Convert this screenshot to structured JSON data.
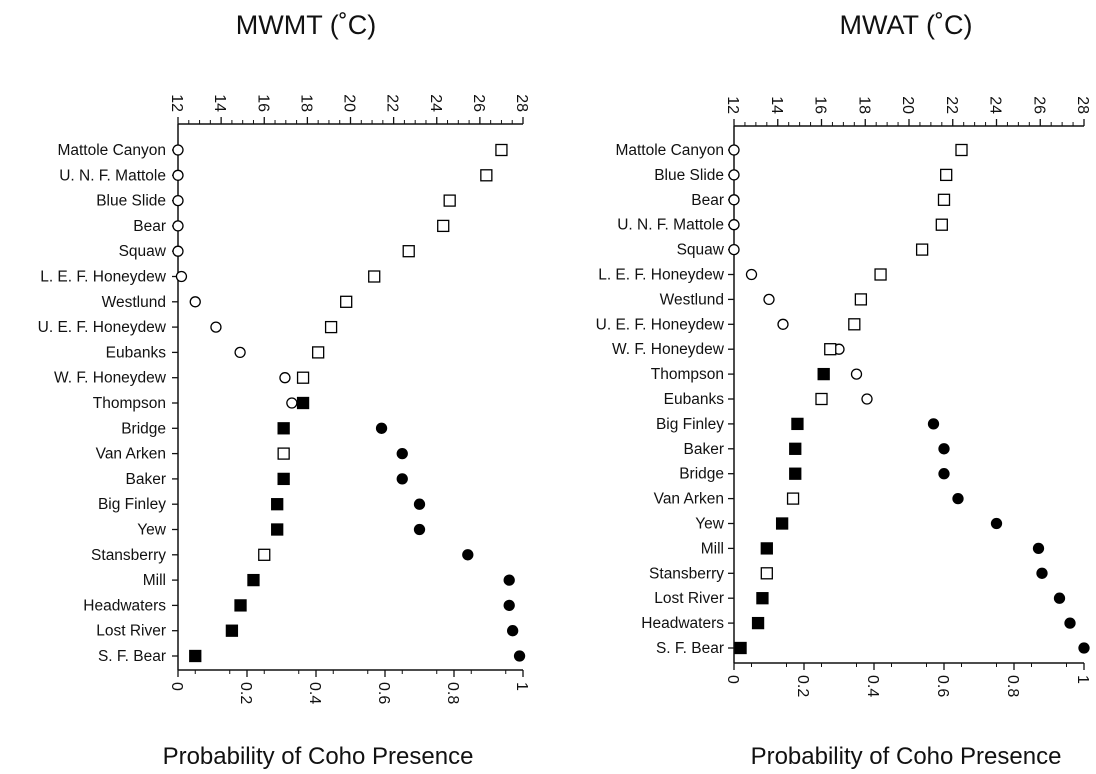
{
  "chart_data": [
    {
      "type": "scatter",
      "title": "MWMT (˚C)",
      "xlabel": "Probability of Coho Presence",
      "x_ticks": [
        "0",
        "0.2",
        "0.4",
        "0.6",
        "0.8",
        "1"
      ],
      "xlim": [
        0,
        1
      ],
      "top_axis_ticks": [
        "12",
        "14",
        "16",
        "18",
        "20",
        "22",
        "24",
        "26",
        "28"
      ],
      "top_axis_range": [
        12,
        28
      ],
      "grid": false,
      "legend": "none",
      "sites": [
        {
          "name": "Mattole Canyon",
          "prob": 0.0,
          "prob_filled": false,
          "temp": 27.0,
          "temp_filled": false
        },
        {
          "name": "U. N. F. Mattole",
          "prob": 0.0,
          "prob_filled": false,
          "temp": 26.3,
          "temp_filled": false
        },
        {
          "name": "Blue Slide",
          "prob": 0.0,
          "prob_filled": false,
          "temp": 24.6,
          "temp_filled": false
        },
        {
          "name": "Bear",
          "prob": 0.0,
          "prob_filled": false,
          "temp": 24.3,
          "temp_filled": false
        },
        {
          "name": "Squaw",
          "prob": 0.0,
          "prob_filled": false,
          "temp": 22.7,
          "temp_filled": false
        },
        {
          "name": "L. E. F. Honeydew",
          "prob": 0.01,
          "prob_filled": false,
          "temp": 21.1,
          "temp_filled": false
        },
        {
          "name": "Westlund",
          "prob": 0.05,
          "prob_filled": false,
          "temp": 19.8,
          "temp_filled": false
        },
        {
          "name": "U. E. F. Honeydew",
          "prob": 0.11,
          "prob_filled": false,
          "temp": 19.1,
          "temp_filled": false
        },
        {
          "name": "Eubanks",
          "prob": 0.18,
          "prob_filled": false,
          "temp": 18.5,
          "temp_filled": false
        },
        {
          "name": "W. F. Honeydew",
          "prob": 0.31,
          "prob_filled": false,
          "temp": 17.8,
          "temp_filled": false
        },
        {
          "name": "Thompson",
          "prob": 0.33,
          "prob_filled": false,
          "temp": 17.8,
          "temp_filled": true
        },
        {
          "name": "Bridge",
          "prob": 0.59,
          "prob_filled": true,
          "temp": 16.9,
          "temp_filled": true
        },
        {
          "name": "Van Arken",
          "prob": 0.65,
          "prob_filled": true,
          "temp": 16.9,
          "temp_filled": false
        },
        {
          "name": "Baker",
          "prob": 0.65,
          "prob_filled": true,
          "temp": 16.9,
          "temp_filled": true
        },
        {
          "name": "Big Finley",
          "prob": 0.7,
          "prob_filled": true,
          "temp": 16.6,
          "temp_filled": true
        },
        {
          "name": "Yew",
          "prob": 0.7,
          "prob_filled": true,
          "temp": 16.6,
          "temp_filled": true
        },
        {
          "name": "Stansberry",
          "prob": 0.84,
          "prob_filled": true,
          "temp": 16.0,
          "temp_filled": false
        },
        {
          "name": "Mill",
          "prob": 0.96,
          "prob_filled": true,
          "temp": 15.5,
          "temp_filled": true
        },
        {
          "name": "Headwaters",
          "prob": 0.96,
          "prob_filled": true,
          "temp": 14.9,
          "temp_filled": true
        },
        {
          "name": "Lost River",
          "prob": 0.97,
          "prob_filled": true,
          "temp": 14.5,
          "temp_filled": true
        },
        {
          "name": "S. F. Bear",
          "prob": 0.99,
          "prob_filled": true,
          "temp": 12.8,
          "temp_filled": true
        }
      ]
    },
    {
      "type": "scatter",
      "title": "MWAT (˚C)",
      "xlabel": "Probability of Coho Presence",
      "x_ticks": [
        "0",
        "0.2",
        "0.4",
        "0.6",
        "0.8",
        "1"
      ],
      "xlim": [
        0,
        1
      ],
      "top_axis_ticks": [
        "12",
        "14",
        "16",
        "18",
        "20",
        "22",
        "24",
        "26",
        "28"
      ],
      "top_axis_range": [
        12,
        28
      ],
      "grid": false,
      "legend": "none",
      "sites": [
        {
          "name": "Mattole Canyon",
          "prob": 0.0,
          "prob_filled": false,
          "temp": 22.4,
          "temp_filled": false
        },
        {
          "name": "Blue Slide",
          "prob": 0.0,
          "prob_filled": false,
          "temp": 21.7,
          "temp_filled": false
        },
        {
          "name": "Bear",
          "prob": 0.0,
          "prob_filled": false,
          "temp": 21.6,
          "temp_filled": false
        },
        {
          "name": "U. N. F. Mattole",
          "prob": 0.0,
          "prob_filled": false,
          "temp": 21.5,
          "temp_filled": false
        },
        {
          "name": "Squaw",
          "prob": 0.0,
          "prob_filled": false,
          "temp": 20.6,
          "temp_filled": false
        },
        {
          "name": "L. E. F. Honeydew",
          "prob": 0.05,
          "prob_filled": false,
          "temp": 18.7,
          "temp_filled": false
        },
        {
          "name": "Westlund",
          "prob": 0.1,
          "prob_filled": false,
          "temp": 17.8,
          "temp_filled": false
        },
        {
          "name": "U. E. F. Honeydew",
          "prob": 0.14,
          "prob_filled": false,
          "temp": 17.5,
          "temp_filled": false
        },
        {
          "name": "W. F. Honeydew",
          "prob": 0.3,
          "prob_filled": false,
          "temp": 16.4,
          "temp_filled": false
        },
        {
          "name": "Thompson",
          "prob": 0.35,
          "prob_filled": false,
          "temp": 16.1,
          "temp_filled": true
        },
        {
          "name": "Eubanks",
          "prob": 0.38,
          "prob_filled": false,
          "temp": 16.0,
          "temp_filled": false
        },
        {
          "name": "Big Finley",
          "prob": 0.57,
          "prob_filled": true,
          "temp": 14.9,
          "temp_filled": true
        },
        {
          "name": "Baker",
          "prob": 0.6,
          "prob_filled": true,
          "temp": 14.8,
          "temp_filled": true
        },
        {
          "name": "Bridge",
          "prob": 0.6,
          "prob_filled": true,
          "temp": 14.8,
          "temp_filled": true
        },
        {
          "name": "Van Arken",
          "prob": 0.64,
          "prob_filled": true,
          "temp": 14.7,
          "temp_filled": false
        },
        {
          "name": "Yew",
          "prob": 0.75,
          "prob_filled": true,
          "temp": 14.2,
          "temp_filled": true
        },
        {
          "name": "Mill",
          "prob": 0.87,
          "prob_filled": true,
          "temp": 13.5,
          "temp_filled": true
        },
        {
          "name": "Stansberry",
          "prob": 0.88,
          "prob_filled": true,
          "temp": 13.5,
          "temp_filled": false
        },
        {
          "name": "Lost River",
          "prob": 0.93,
          "prob_filled": true,
          "temp": 13.3,
          "temp_filled": true
        },
        {
          "name": "Headwaters",
          "prob": 0.96,
          "prob_filled": true,
          "temp": 13.1,
          "temp_filled": true
        },
        {
          "name": "S. F. Bear",
          "prob": 1.0,
          "prob_filled": true,
          "temp": 12.3,
          "temp_filled": true
        }
      ]
    }
  ]
}
